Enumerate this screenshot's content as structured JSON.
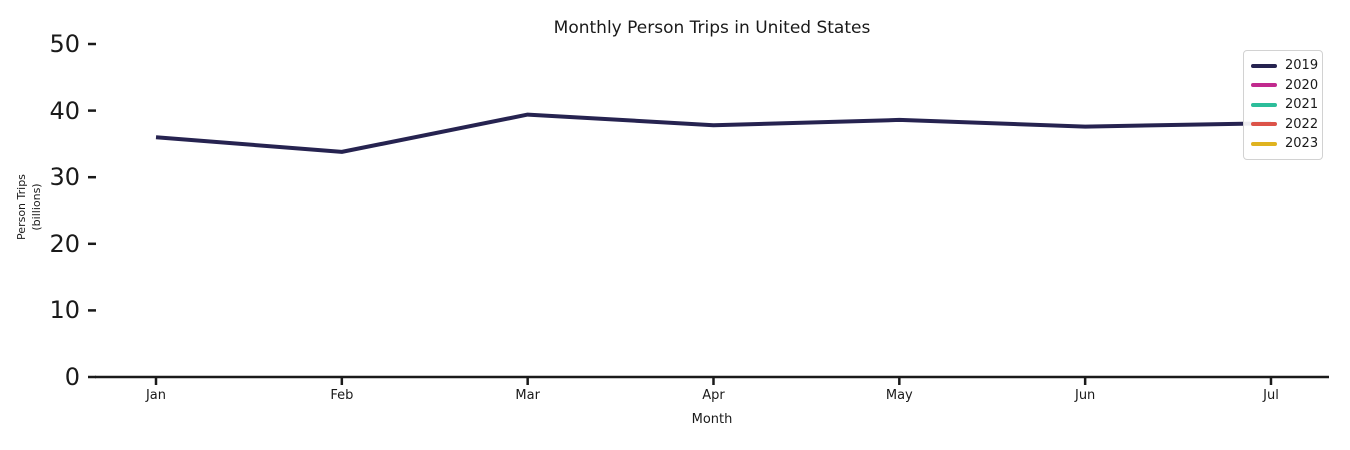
{
  "title": "Monthly Person Trips in United States",
  "axes": {
    "xlabel": "Month",
    "ylabel_line1": "Person Trips",
    "ylabel_line2": "(billions)",
    "x_ticks": [
      "Jan",
      "Feb",
      "Mar",
      "Apr",
      "May",
      "Jun",
      "Jul"
    ],
    "y_ticks": [
      "0",
      "10",
      "20",
      "30",
      "40",
      "50"
    ]
  },
  "legend": {
    "position": "upper right",
    "entries": [
      {
        "label": "2019",
        "color": "#262350"
      },
      {
        "label": "2020",
        "color": "#c12a8e"
      },
      {
        "label": "2021",
        "color": "#2cbd9a"
      },
      {
        "label": "2022",
        "color": "#dc5349"
      },
      {
        "label": "2023",
        "color": "#dfb320"
      }
    ]
  },
  "colors": {
    "axis": "#1a1a1a",
    "text": "#1a1a1a",
    "background": "#ffffff"
  },
  "chart_data": {
    "type": "line",
    "title": "Monthly Person Trips in United States",
    "xlabel": "Month",
    "ylabel": "Person Trips (billions)",
    "x": [
      "Jan",
      "Feb",
      "Mar",
      "Apr",
      "May",
      "Jun",
      "Jul"
    ],
    "ylim": [
      0,
      50
    ],
    "y_tick_values": [
      0,
      10,
      20,
      30,
      40,
      50
    ],
    "grid": false,
    "legend_position": "upper right",
    "series": [
      {
        "name": "2019",
        "color": "#262350",
        "values": [
          36.0,
          33.8,
          39.4,
          37.8,
          38.6,
          37.6,
          38.1
        ]
      },
      {
        "name": "2020",
        "color": "#c12a8e",
        "values": []
      },
      {
        "name": "2021",
        "color": "#2cbd9a",
        "values": []
      },
      {
        "name": "2022",
        "color": "#dc5349",
        "values": []
      },
      {
        "name": "2023",
        "color": "#dfb320",
        "values": []
      }
    ]
  }
}
